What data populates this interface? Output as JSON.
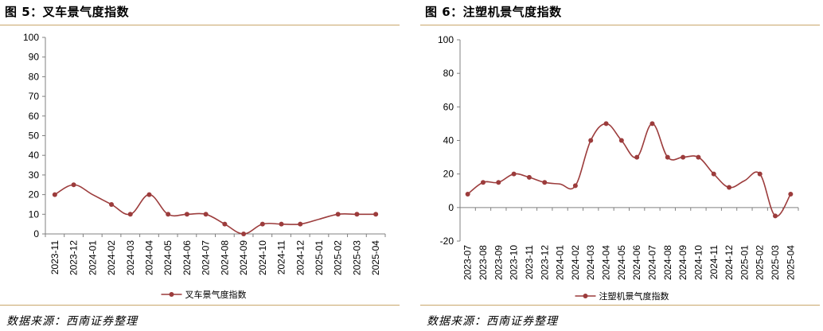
{
  "figures": [
    {
      "title": "图 5：叉车景气度指数",
      "source": "数据来源：西南证券整理"
    },
    {
      "title": "图 6：注塑机景气度指数",
      "source": "数据来源：西南证券整理"
    }
  ],
  "chart_data": [
    {
      "type": "line",
      "title": "",
      "xlabel": "",
      "ylabel": "",
      "categories": [
        "2023-11",
        "2023-12",
        "2024-01",
        "2024-02",
        "2024-03",
        "2024-04",
        "2024-05",
        "2024-06",
        "2024-07",
        "2024-08",
        "2024-09",
        "2024-10",
        "2024-11",
        "2024-12",
        "2025-01",
        "2025-02",
        "2025-03",
        "2025-04"
      ],
      "series": [
        {
          "name": "叉车景气度指数",
          "color": "#9c3c3c",
          "values": [
            20,
            25,
            null,
            15,
            10,
            20,
            10,
            10,
            10,
            5,
            0,
            5,
            5,
            5,
            null,
            10,
            10,
            10
          ]
        }
      ],
      "ylim": [
        0,
        100
      ],
      "yticks": [
        0,
        10,
        20,
        30,
        40,
        50,
        60,
        70,
        80,
        90,
        100
      ],
      "grid": false,
      "legend": "bottom-center"
    },
    {
      "type": "line",
      "title": "",
      "xlabel": "",
      "ylabel": "",
      "categories": [
        "2023-07",
        "2023-08",
        "2023-09",
        "2023-10",
        "2023-11",
        "2023-12",
        "2024-01",
        "2024-02",
        "2024-03",
        "2024-04",
        "2024-05",
        "2024-06",
        "2024-07",
        "2024-08",
        "2024-09",
        "2024-10",
        "2024-11",
        "2024-12",
        "2025-01",
        "2025-02",
        "2025-03",
        "2025-04"
      ],
      "series": [
        {
          "name": "注塑机景气度指数",
          "color": "#9c3c3c",
          "values": [
            8,
            15,
            15,
            20,
            18,
            15,
            null,
            13,
            40,
            50,
            40,
            30,
            50,
            30,
            30,
            30,
            20,
            12,
            null,
            20,
            -5,
            8
          ]
        }
      ],
      "ylim": [
        -20,
        100
      ],
      "yticks": [
        -20,
        0,
        20,
        40,
        60,
        80,
        100
      ],
      "grid": false,
      "legend": "bottom-center"
    }
  ]
}
